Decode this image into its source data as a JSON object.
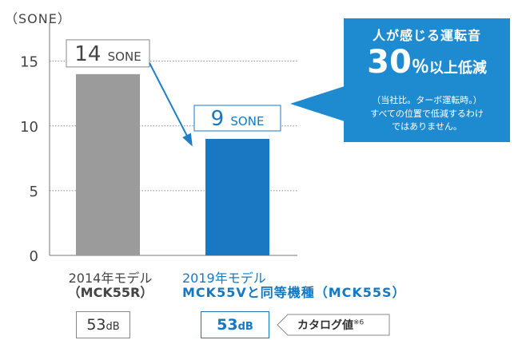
{
  "chart_data": {
    "type": "bar",
    "unit_label": "（SONE）",
    "y_ticks": [
      "0",
      "5",
      "10",
      "15"
    ],
    "ylim": [
      0,
      18
    ],
    "grid": true,
    "categories": [
      {
        "line1": "2014年モデル",
        "line2": "（MCK55R）"
      },
      {
        "line1": "2019年モデル",
        "line2": "MCK55Vと同等機種（MCK55S）"
      }
    ],
    "values": [
      14,
      9
    ],
    "bar_colors": [
      "#9b9b9b",
      "#1a78c2"
    ],
    "value_labels": [
      {
        "num": "14",
        "unit": "SONE"
      },
      {
        "num": "9",
        "unit": "SONE"
      }
    ],
    "db_labels": [
      {
        "num": "53",
        "unit": "dB"
      },
      {
        "num": "53",
        "unit": "dB"
      }
    ],
    "catalog_note": {
      "text": "カタログ値",
      "mark": "※6"
    },
    "callout": {
      "line1": "人が感じる運転音",
      "big": "30",
      "pct": "％",
      "rest": "以上低減",
      "note1": "（当社比。ターボ運転時。）",
      "note2": "すべての位置で低減するわけ",
      "note3": "ではありません。"
    }
  }
}
